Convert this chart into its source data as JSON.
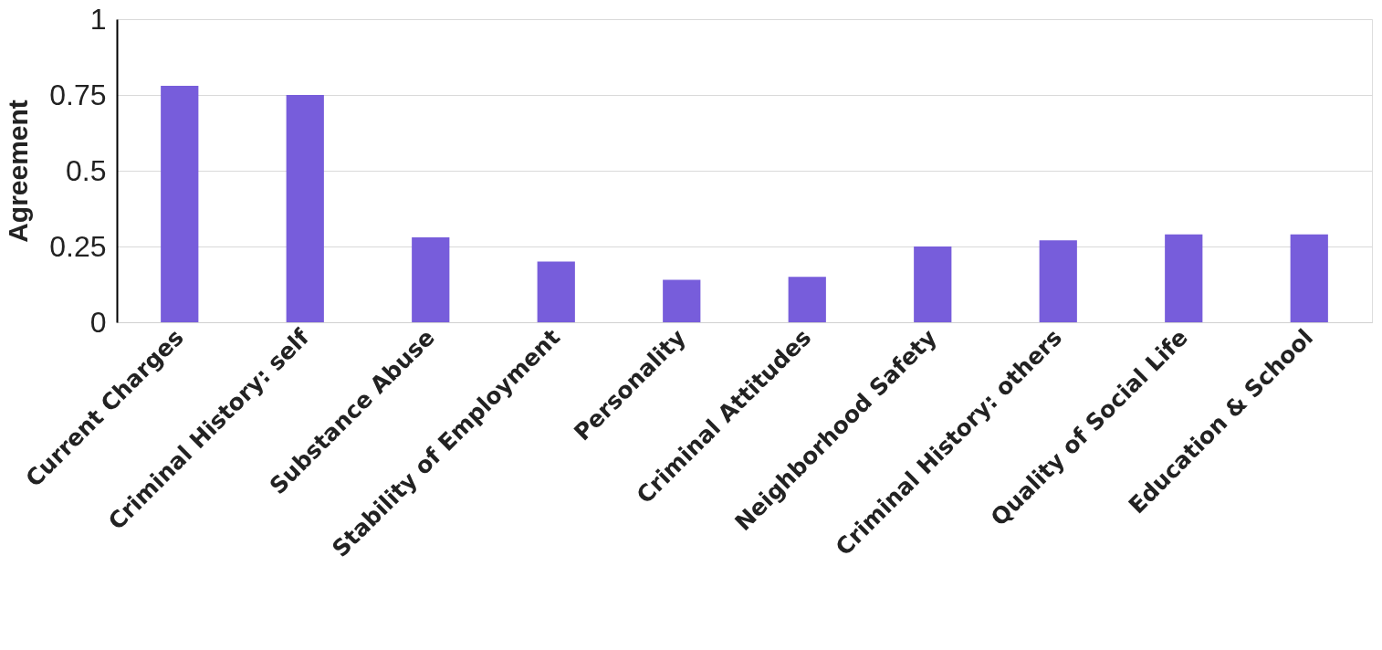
{
  "chart_data": {
    "type": "bar",
    "ylabel": "Agreement",
    "categories": [
      "Current Charges",
      "Criminal History: self",
      "Substance Abuse",
      "Stability of Employment",
      "Personality",
      "Criminal Attitudes",
      "Neighborhood Safety",
      "Criminal History: others",
      "Quality of Social Life",
      "Education & School"
    ],
    "values": [
      0.78,
      0.75,
      0.28,
      0.2,
      0.14,
      0.15,
      0.25,
      0.27,
      0.29,
      0.29
    ],
    "color": "#775ddb",
    "ylim": [
      0,
      1
    ],
    "yticks": [
      0,
      0.25,
      0.5,
      0.75,
      1
    ],
    "grid": "y"
  }
}
